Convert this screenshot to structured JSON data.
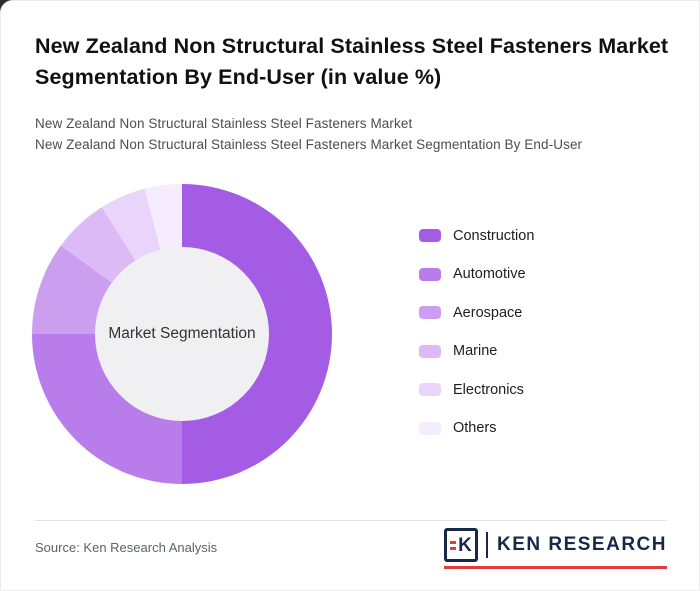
{
  "header": {
    "title": "New Zealand Non Structural Stainless Steel Fasteners Market Segmentation By End-User (in value %)",
    "subtitle1": "New Zealand Non Structural Stainless Steel Fasteners Market",
    "subtitle2": "New Zealand Non Structural Stainless Steel Fasteners Market Segmentation By End-User"
  },
  "chart_data": {
    "type": "pie",
    "style": "donut",
    "title": "New Zealand Non Structural Stainless Steel Fasteners Market Segmentation By End-User (in value %)",
    "center_label": "Market Segmentation",
    "legend_position": "right",
    "start_angle_deg": 0,
    "categories": [
      "Construction",
      "Automotive",
      "Aerospace",
      "Marine",
      "Electronics",
      "Others"
    ],
    "values": [
      50,
      25,
      10,
      6,
      5,
      4
    ],
    "colors": [
      "#a55ce4",
      "#b87dea",
      "#cb9ef0",
      "#dcbaf5",
      "#e9d4fa",
      "#f5ecfd"
    ]
  },
  "footer": {
    "source": "Source: Ken Research Analysis",
    "logo_mark": "K",
    "logo_text": "KEN RESEARCH",
    "accent_color": "#e23b3b"
  }
}
